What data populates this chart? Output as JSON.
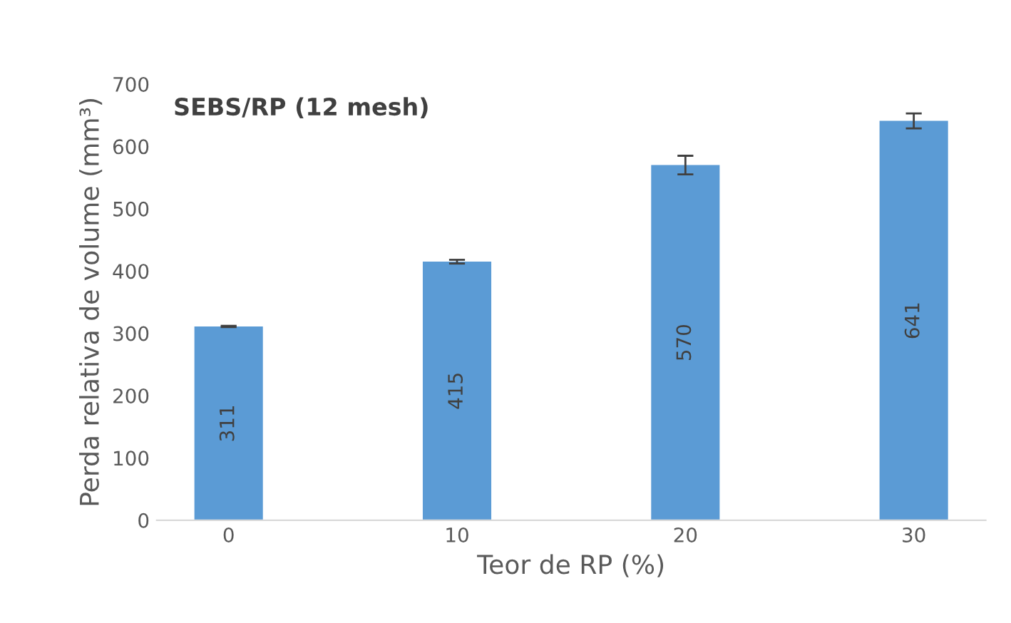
{
  "chart_data": {
    "type": "bar",
    "title": "SEBS/RP (12 mesh)",
    "xlabel": "Teor de RP (%)",
    "ylabel": "Perda relativa de volume (mm³)",
    "categories": [
      "0",
      "10",
      "20",
      "30"
    ],
    "values": [
      311,
      415,
      570,
      641
    ],
    "errors": [
      1,
      3,
      15,
      12
    ],
    "color": "#5b9bd5",
    "data_labels": true,
    "ylim": [
      0,
      700
    ],
    "yticks": [
      0,
      100,
      200,
      300,
      400,
      500,
      600,
      700
    ],
    "grid": false,
    "legend": false
  }
}
